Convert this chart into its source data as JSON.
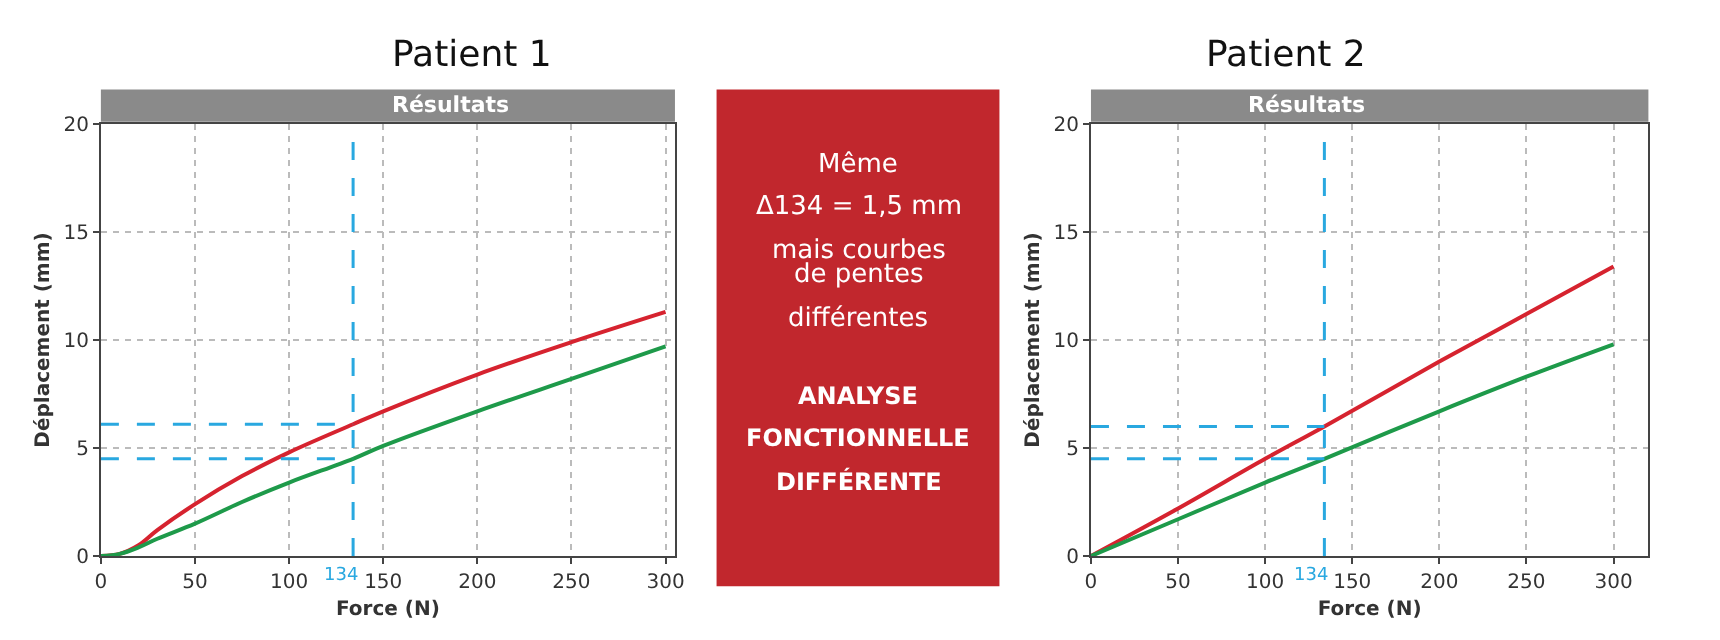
{
  "chart_data": [
    {
      "type": "line",
      "title": "Patient 1",
      "subtitle": "Résultats",
      "xlabel": "Force (N)",
      "ylabel": "Déplacement (mm)",
      "xlim": [
        0,
        305
      ],
      "ylim": [
        0,
        20
      ],
      "xticks": [
        0,
        50,
        100,
        150,
        200,
        250,
        300
      ],
      "yticks": [
        0,
        5,
        10,
        15,
        20
      ],
      "grid": true,
      "series": [
        {
          "color": "#d6232f",
          "x": [
            0,
            10,
            20,
            30,
            50,
            75,
            100,
            134,
            150,
            200,
            250,
            300
          ],
          "values": [
            0,
            0.1,
            0.5,
            1.2,
            2.4,
            3.7,
            4.8,
            6.1,
            6.7,
            8.4,
            9.9,
            11.3
          ]
        },
        {
          "color": "#1e9a4a",
          "x": [
            0,
            10,
            20,
            30,
            50,
            75,
            100,
            134,
            150,
            200,
            250,
            300
          ],
          "values": [
            0,
            0.1,
            0.4,
            0.8,
            1.5,
            2.5,
            3.4,
            4.5,
            5.1,
            6.7,
            8.2,
            9.7
          ]
        }
      ],
      "ref_lines": [
        {
          "axis": "x",
          "value": 134,
          "label": "134",
          "color": "#29a8e0",
          "line_style": "dashed"
        },
        {
          "axis": "y",
          "value": 6.1,
          "color": "#29a8e0",
          "line_style": "dashed"
        },
        {
          "axis": "y",
          "value": 4.5,
          "color": "#29a8e0",
          "line_style": "dashed"
        }
      ]
    },
    {
      "type": "other",
      "annotations": [
        "Même",
        "Δ134 = 1,5 mm",
        "mais courbes",
        "de pentes",
        "différentes",
        "ANALYSE",
        "FONCTIONNELLE",
        "DIFFÉRENTE"
      ]
    },
    {
      "type": "line",
      "title": "Patient 2",
      "subtitle": "Résultats",
      "xlabel": "Force (N)",
      "ylabel": "Déplacement (mm)",
      "xlim": [
        0,
        320
      ],
      "ylim": [
        0,
        20
      ],
      "xticks": [
        0,
        50,
        100,
        150,
        200,
        250,
        300
      ],
      "yticks": [
        0,
        5,
        10,
        15,
        20
      ],
      "grid": true,
      "series": [
        {
          "color": "#d6232f",
          "x": [
            0,
            50,
            100,
            134,
            200,
            250,
            300
          ],
          "values": [
            0,
            2.2,
            4.5,
            6.0,
            9.0,
            11.2,
            13.4
          ]
        },
        {
          "color": "#1e9a4a",
          "x": [
            0,
            50,
            100,
            134,
            200,
            250,
            300
          ],
          "values": [
            0,
            1.7,
            3.4,
            4.5,
            6.7,
            8.3,
            9.8
          ]
        }
      ],
      "ref_lines": [
        {
          "axis": "x",
          "value": 134,
          "label": "134",
          "color": "#29a8e0",
          "line_style": "dashed"
        },
        {
          "axis": "y",
          "value": 6.0,
          "color": "#29a8e0",
          "line_style": "dashed"
        },
        {
          "axis": "y",
          "value": 4.5,
          "color": "#29a8e0",
          "line_style": "dashed"
        }
      ]
    }
  ]
}
